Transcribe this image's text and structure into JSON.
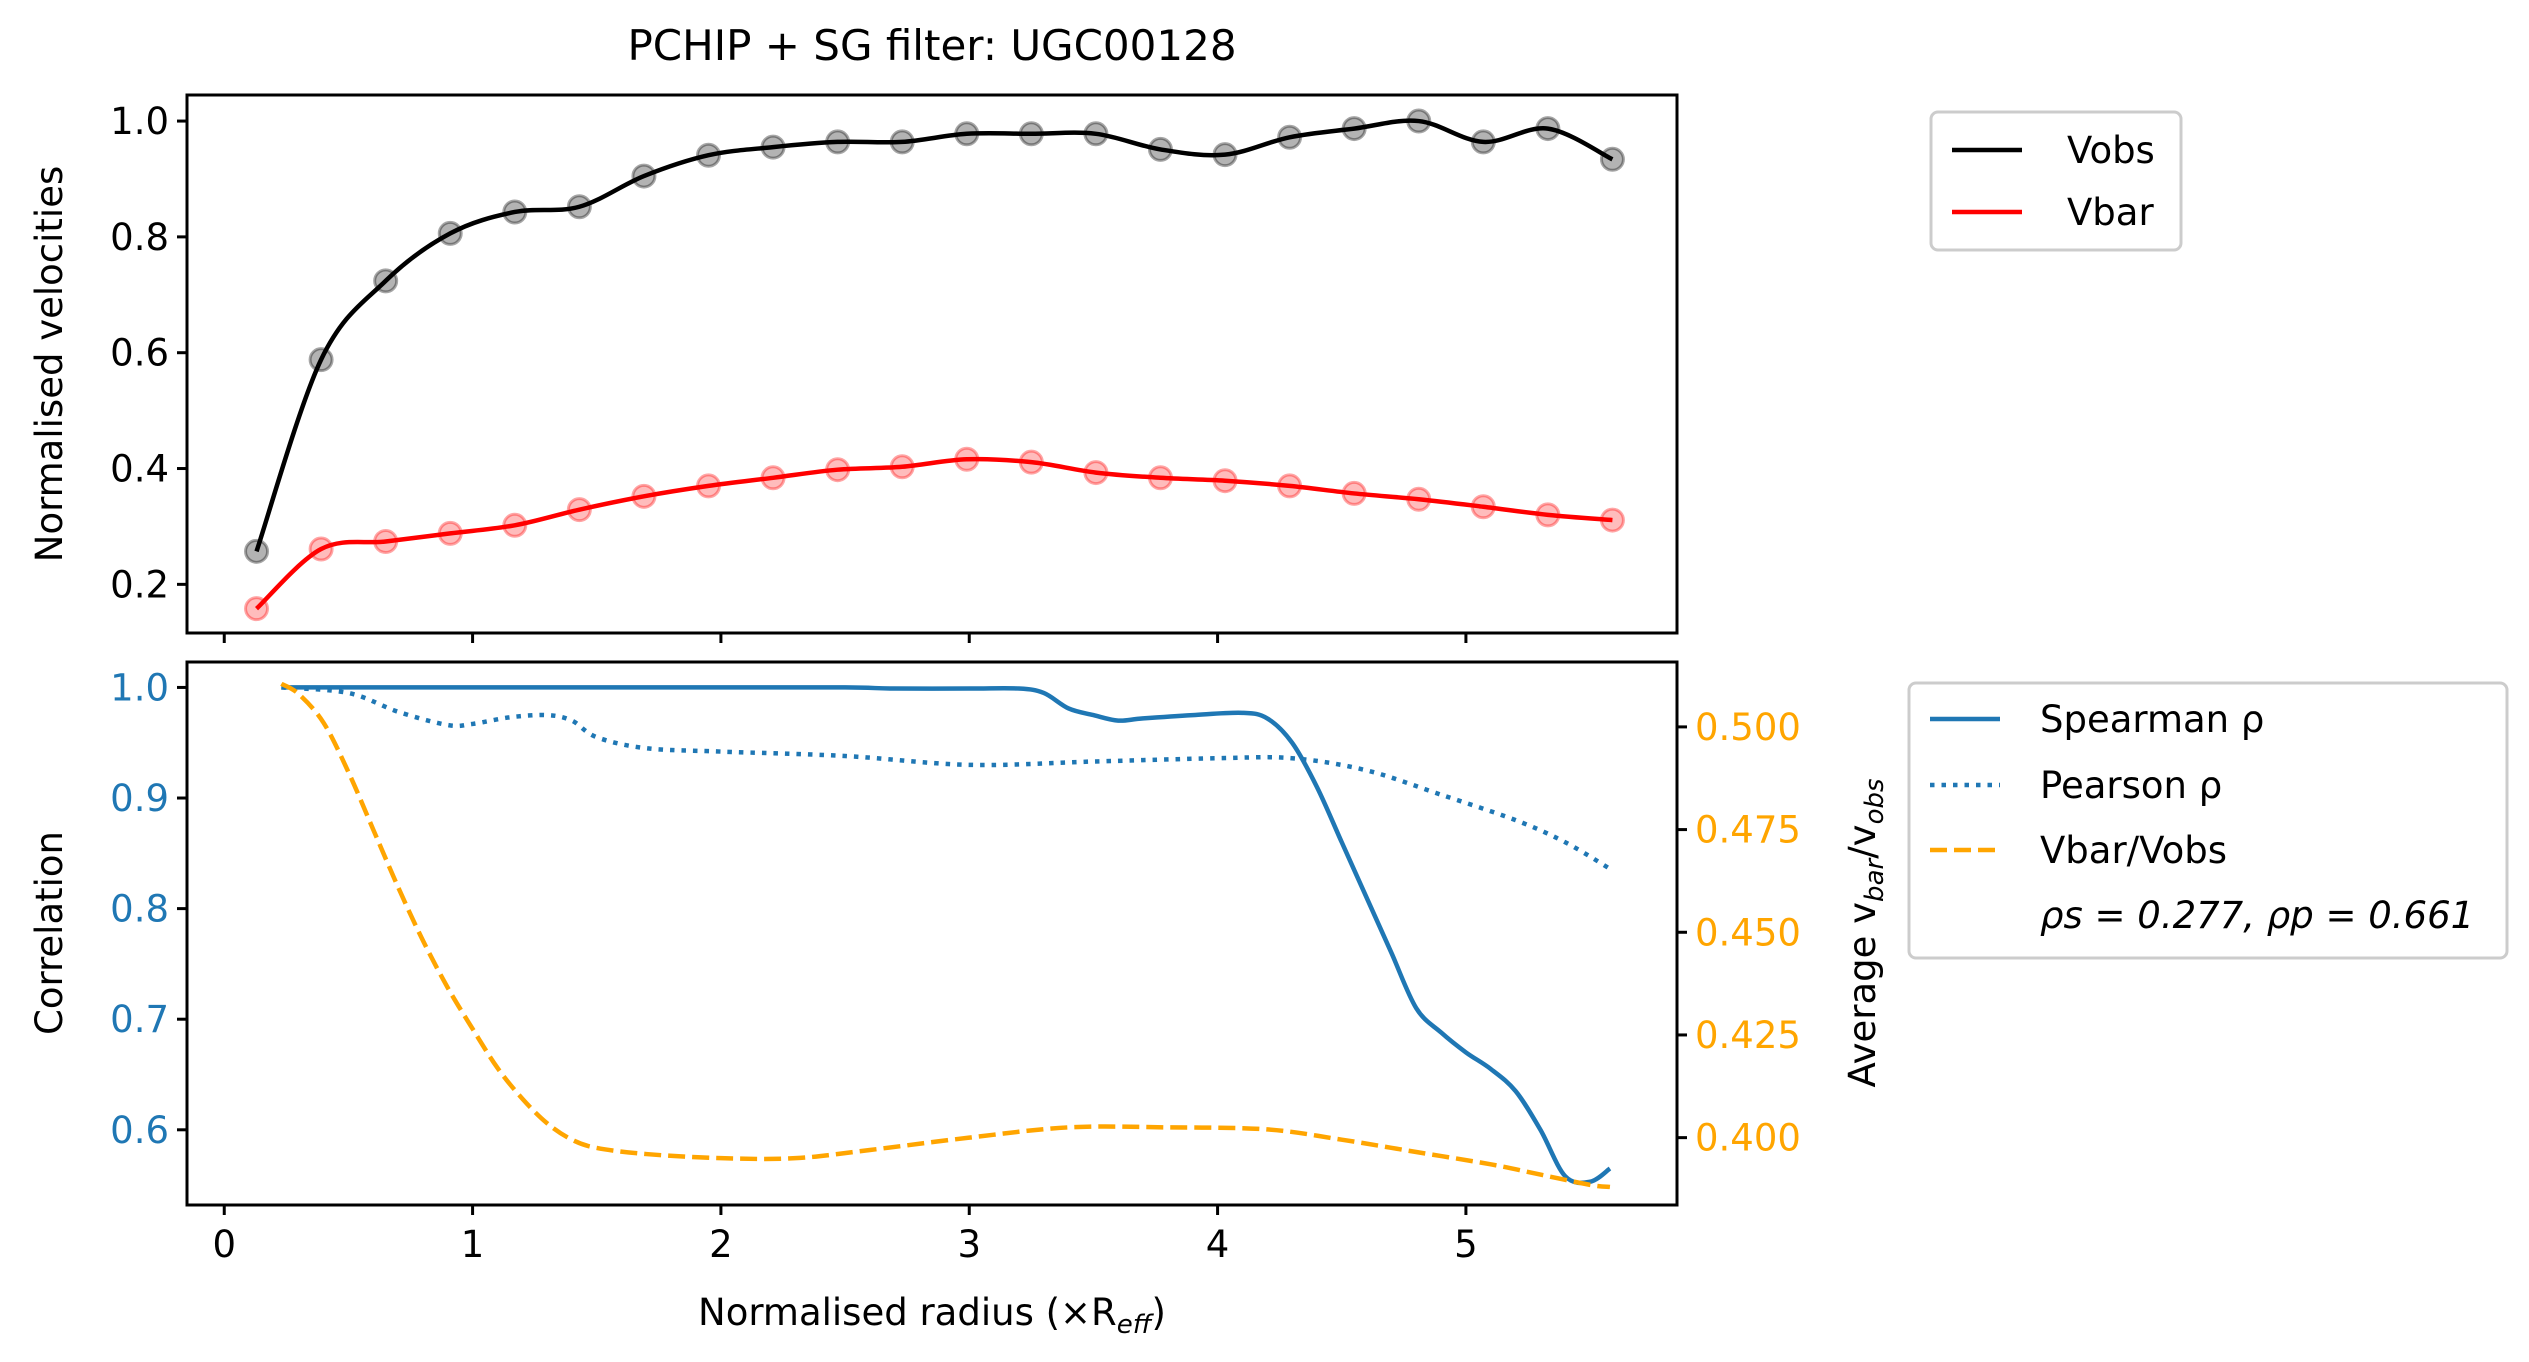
{
  "title": "PCHIP + SG filter: UGC00128",
  "chart_data": [
    {
      "type": "line",
      "ylabel": "Normalised velocities",
      "xlim": [
        -0.15,
        5.85
      ],
      "ylim": [
        0.116,
        1.045
      ],
      "yticks": [
        0.2,
        0.4,
        0.6,
        0.8,
        1.0
      ],
      "ytick_labels": [
        "0.2",
        "0.4",
        "0.6",
        "0.8",
        "1.0"
      ],
      "xticks": [
        0,
        1,
        2,
        3,
        4,
        5
      ],
      "legend": {
        "placement": "outside-right-top",
        "entries": [
          "Vobs",
          "Vbar"
        ]
      },
      "series": [
        {
          "name": "Vobs",
          "color": "#000000",
          "x": [
            0.13,
            0.39,
            0.65,
            0.91,
            1.17,
            1.43,
            1.69,
            1.95,
            2.21,
            2.47,
            2.73,
            2.99,
            3.25,
            3.51,
            3.77,
            4.03,
            4.29,
            4.55,
            4.81,
            5.07,
            5.33,
            5.59
          ],
          "y": [
            0.257,
            0.588,
            0.724,
            0.806,
            0.843,
            0.852,
            0.905,
            0.941,
            0.955,
            0.964,
            0.964,
            0.978,
            0.978,
            0.978,
            0.951,
            0.942,
            0.972,
            0.987,
            1.0,
            0.964,
            0.987,
            0.934
          ]
        },
        {
          "name": "Vbar",
          "color": "#ff0000",
          "x": [
            0.13,
            0.39,
            0.65,
            0.91,
            1.17,
            1.43,
            1.69,
            1.95,
            2.21,
            2.47,
            2.73,
            2.99,
            3.25,
            3.51,
            3.77,
            4.03,
            4.29,
            4.55,
            4.81,
            5.07,
            5.33,
            5.59
          ],
          "y": [
            0.158,
            0.261,
            0.274,
            0.288,
            0.302,
            0.329,
            0.352,
            0.37,
            0.384,
            0.398,
            0.403,
            0.416,
            0.411,
            0.393,
            0.384,
            0.379,
            0.37,
            0.357,
            0.347,
            0.334,
            0.32,
            0.311
          ]
        }
      ]
    },
    {
      "type": "line",
      "xlabel": "Normalised radius (×R",
      "xlabel_sub": "eff",
      "xlabel_end": ")",
      "ylabel": "Correlation",
      "y2label": "Average v",
      "y2label_sub1": "bar",
      "y2label_mid": "/v",
      "y2label_sub2": "obs",
      "xlim": [
        -0.15,
        5.85
      ],
      "xticks": [
        0,
        1,
        2,
        3,
        4,
        5
      ],
      "xtick_labels": [
        "0",
        "1",
        "2",
        "3",
        "4",
        "5"
      ],
      "ylim": [
        0.532,
        1.023
      ],
      "yticks": [
        0.6,
        0.7,
        0.8,
        0.9,
        1.0
      ],
      "ytick_labels": [
        "0.6",
        "0.7",
        "0.8",
        "0.9",
        "1.0"
      ],
      "y2lim": [
        0.3836,
        0.5158
      ],
      "y2ticks": [
        0.4,
        0.425,
        0.45,
        0.475,
        0.5
      ],
      "y2tick_labels": [
        "0.400",
        "0.425",
        "0.450",
        "0.475",
        "0.500"
      ],
      "left_axis_color": "#1f77b4",
      "right_axis_color": "#ffa500",
      "legend": {
        "placement": "outside-right-top",
        "entries": [
          "Spearman ρ",
          "Pearson ρ",
          "Vbar/Vobs"
        ],
        "annotation": "ρs = 0.277, ρp = 0.661"
      },
      "series": [
        {
          "name": "Spearman ρ",
          "color": "#1f77b4",
          "style": "solid",
          "axis": "left",
          "x": [
            0.23,
            0.5,
            1.0,
            1.5,
            2.0,
            2.5,
            2.7,
            3.0,
            3.2,
            3.3,
            3.4,
            3.5,
            3.6,
            3.7,
            3.9,
            4.1,
            4.2,
            4.3,
            4.4,
            4.5,
            4.6,
            4.7,
            4.8,
            4.9,
            5.0,
            5.1,
            5.2,
            5.3,
            5.4,
            5.5,
            5.58
          ],
          "y": [
            1.0,
            1.0,
            1.0,
            1.0,
            1.0,
            1.0,
            0.999,
            0.999,
            0.999,
            0.995,
            0.981,
            0.975,
            0.97,
            0.972,
            0.975,
            0.977,
            0.972,
            0.95,
            0.91,
            0.86,
            0.81,
            0.76,
            0.71,
            0.688,
            0.67,
            0.655,
            0.635,
            0.6,
            0.558,
            0.553,
            0.565
          ]
        },
        {
          "name": "Pearson ρ",
          "color": "#1f77b4",
          "style": "dotted",
          "axis": "left",
          "x": [
            0.23,
            0.5,
            0.7,
            0.9,
            1.0,
            1.15,
            1.3,
            1.4,
            1.5,
            1.7,
            2.0,
            2.5,
            3.0,
            3.5,
            4.0,
            4.3,
            4.6,
            4.9,
            5.2,
            5.4,
            5.58
          ],
          "y": [
            1.0,
            0.995,
            0.978,
            0.966,
            0.967,
            0.973,
            0.975,
            0.97,
            0.955,
            0.945,
            0.942,
            0.938,
            0.93,
            0.933,
            0.936,
            0.936,
            0.925,
            0.903,
            0.88,
            0.86,
            0.836
          ]
        },
        {
          "name": "Vbar/Vobs",
          "color": "#ffa500",
          "style": "dashed",
          "axis": "right",
          "x": [
            0.23,
            0.3,
            0.4,
            0.5,
            0.6,
            0.7,
            0.8,
            0.9,
            1.0,
            1.1,
            1.2,
            1.3,
            1.4,
            1.5,
            1.7,
            2.0,
            2.3,
            2.6,
            3.0,
            3.4,
            3.8,
            4.2,
            4.5,
            4.8,
            5.1,
            5.3,
            5.5,
            5.58
          ],
          "y": [
            0.5105,
            0.508,
            0.501,
            0.489,
            0.475,
            0.461,
            0.448,
            0.4365,
            0.4265,
            0.417,
            0.4095,
            0.4035,
            0.3995,
            0.3975,
            0.396,
            0.395,
            0.395,
            0.397,
            0.4,
            0.4025,
            0.4025,
            0.402,
            0.3995,
            0.3965,
            0.3935,
            0.391,
            0.3885,
            0.388
          ]
        }
      ]
    }
  ]
}
